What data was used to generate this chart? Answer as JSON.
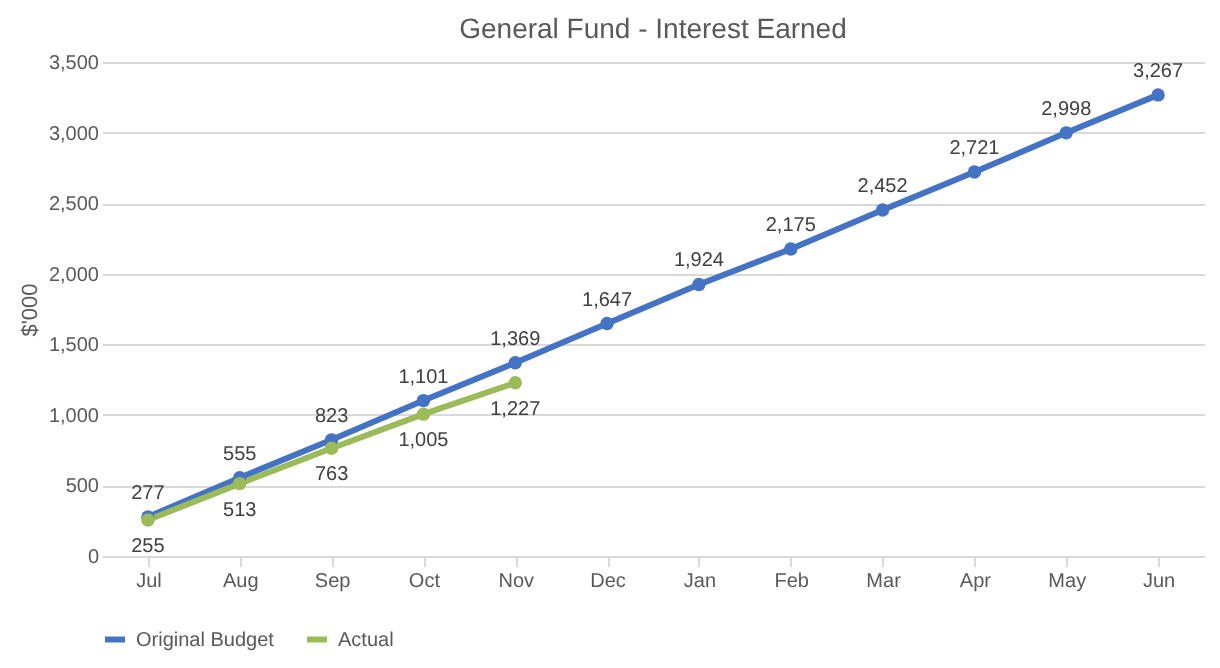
{
  "chart_data": {
    "type": "line",
    "title": "General Fund - Interest Earned",
    "ylabel": "$'000",
    "categories": [
      "Jul",
      "Aug",
      "Sep",
      "Oct",
      "Nov",
      "Dec",
      "Jan",
      "Feb",
      "Mar",
      "Apr",
      "May",
      "Jun"
    ],
    "series": [
      {
        "name": "Original Budget",
        "color": "#4472c4",
        "values": [
          277,
          555,
          823,
          1101,
          1369,
          1647,
          1924,
          2175,
          2452,
          2721,
          2998,
          3267
        ],
        "value_labels": [
          "277",
          "555",
          "823",
          "1,101",
          "1,369",
          "1,647",
          "1,924",
          "2,175",
          "2,452",
          "2,721",
          "2,998",
          "3,267"
        ]
      },
      {
        "name": "Actual",
        "color": "#9bbb59",
        "values": [
          255,
          513,
          763,
          1005,
          1227,
          null,
          null,
          null,
          null,
          null,
          null,
          null
        ],
        "value_labels": [
          "255",
          "513",
          "763",
          "1,005",
          "1,227",
          null,
          null,
          null,
          null,
          null,
          null,
          null
        ]
      }
    ],
    "ylim": [
      0,
      3500
    ],
    "yticks": [
      0,
      500,
      {
        "value": 1000,
        "label": "1,000"
      },
      {
        "value": 1500,
        "label": "1,500"
      },
      {
        "value": 2000,
        "label": "2,000"
      },
      {
        "value": 2500,
        "label": "2,500"
      },
      {
        "value": 3000,
        "label": "3,000"
      },
      {
        "value": 3500,
        "label": "3,500"
      }
    ],
    "grid": "y",
    "legend": "bottom",
    "marker": "circle",
    "line_style": "solid"
  }
}
